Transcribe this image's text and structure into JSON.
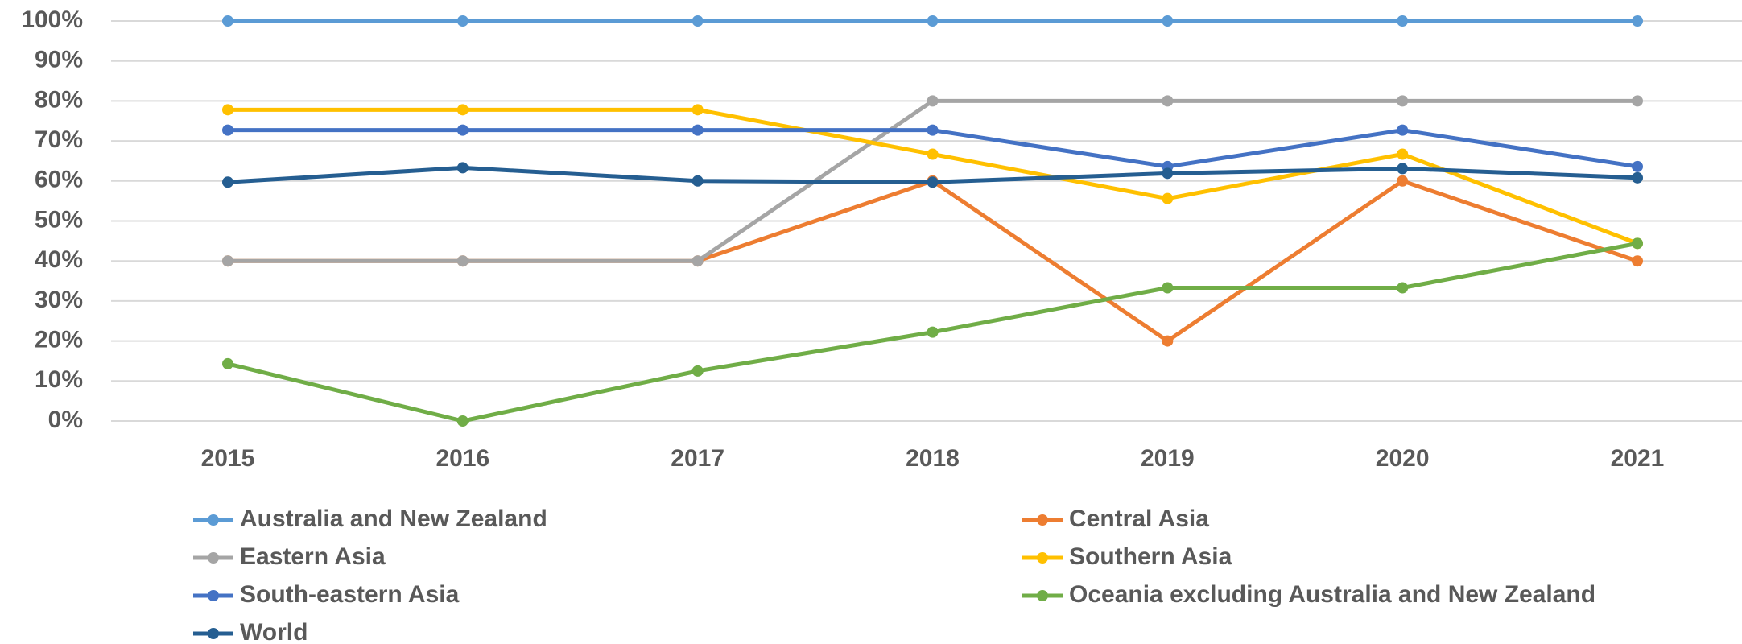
{
  "chart_data": {
    "type": "line",
    "categories": [
      "2015",
      "2016",
      "2017",
      "2018",
      "2019",
      "2020",
      "2021"
    ],
    "ylim": [
      0,
      100
    ],
    "yticks": [
      {
        "value": 0,
        "label": "0%"
      },
      {
        "value": 10,
        "label": "10%"
      },
      {
        "value": 20,
        "label": "20%"
      },
      {
        "value": 30,
        "label": "30%"
      },
      {
        "value": 40,
        "label": "40%"
      },
      {
        "value": 50,
        "label": "50%"
      },
      {
        "value": 60,
        "label": "60%"
      },
      {
        "value": 70,
        "label": "70%"
      },
      {
        "value": 80,
        "label": "80%"
      },
      {
        "value": 90,
        "label": "90%"
      },
      {
        "value": 100,
        "label": "100%"
      }
    ],
    "grid": true,
    "legend": "bottom",
    "series": [
      {
        "name": "Australia and New Zealand",
        "color": "#5b9bd5",
        "values": [
          100,
          100,
          100,
          100,
          100,
          100,
          100
        ]
      },
      {
        "name": "Central Asia",
        "color": "#ed7d31",
        "values": [
          40,
          40,
          40,
          60,
          20,
          60,
          40
        ]
      },
      {
        "name": "Eastern Asia",
        "color": "#a5a5a5",
        "values": [
          40,
          40,
          40,
          80,
          80,
          80,
          80
        ]
      },
      {
        "name": "Southern Asia",
        "color": "#ffc000",
        "values": [
          77.8,
          77.8,
          77.8,
          66.7,
          55.6,
          66.7,
          44.4
        ]
      },
      {
        "name": "South-eastern Asia",
        "color": "#4472c4",
        "values": [
          72.7,
          72.7,
          72.7,
          72.7,
          63.6,
          72.7,
          63.6
        ]
      },
      {
        "name": "Oceania excluding Australia and New Zealand",
        "color": "#70ad47",
        "values": [
          14.3,
          0,
          12.5,
          22.2,
          33.3,
          33.3,
          44.4
        ]
      },
      {
        "name": "World",
        "color": "#255e91",
        "values": [
          59.7,
          63.3,
          60,
          59.7,
          61.9,
          63.1,
          60.8
        ]
      }
    ]
  }
}
